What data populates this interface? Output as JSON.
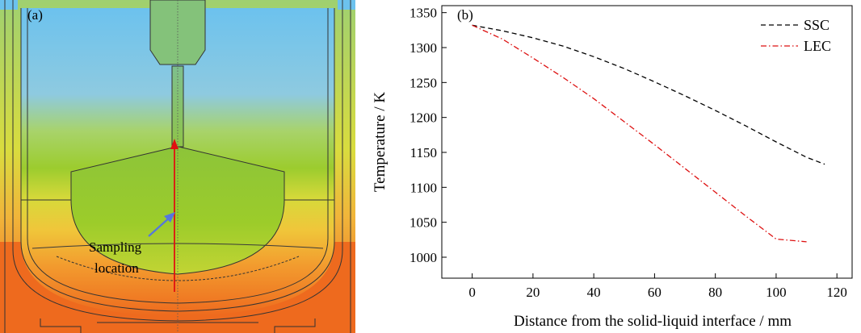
{
  "panel_a": {
    "label": "(a)",
    "annotation_line1": "Sampling",
    "annotation_line2": "location"
  },
  "chart_data": {
    "type": "line",
    "panel_label": "(b)",
    "xlabel": "Distance from the solid-liquid interface / mm",
    "ylabel": "Temperature / K",
    "xlim": [
      -10,
      125
    ],
    "ylim": [
      970,
      1360
    ],
    "xticks": [
      0,
      20,
      40,
      60,
      80,
      100,
      120
    ],
    "yticks": [
      1000,
      1050,
      1100,
      1150,
      1200,
      1250,
      1300,
      1350
    ],
    "grid": false,
    "legend_position": "top-right",
    "series": [
      {
        "name": "SSC",
        "color": "#000000",
        "dash": "dashed",
        "x": [
          0,
          10,
          20,
          30,
          40,
          50,
          60,
          70,
          80,
          90,
          100,
          110,
          116
        ],
        "y": [
          1332,
          1324,
          1314,
          1302,
          1287,
          1270,
          1251,
          1231,
          1210,
          1188,
          1165,
          1143,
          1133
        ]
      },
      {
        "name": "LEC",
        "color": "#dd1111",
        "dash": "dashdot",
        "x": [
          0,
          10,
          20,
          30,
          40,
          50,
          60,
          70,
          80,
          90,
          100,
          110
        ],
        "y": [
          1332,
          1312,
          1285,
          1257,
          1227,
          1194,
          1161,
          1127,
          1093,
          1059,
          1026,
          1022
        ]
      }
    ]
  }
}
